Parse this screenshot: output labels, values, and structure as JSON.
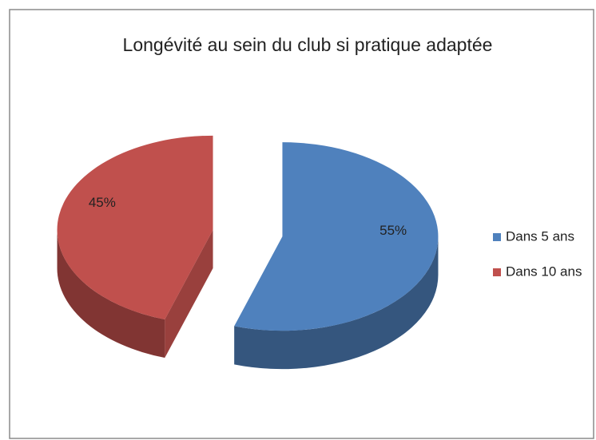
{
  "chart_data": {
    "type": "pie",
    "title": "Longévité au sein du club si pratique adaptée",
    "categories": [
      "Dans 5 ans",
      "Dans 10 ans"
    ],
    "values": [
      55,
      45
    ],
    "value_labels": [
      "55%",
      "45%"
    ],
    "colors": [
      "#4f81bd",
      "#c0504d"
    ],
    "legend": "right"
  }
}
